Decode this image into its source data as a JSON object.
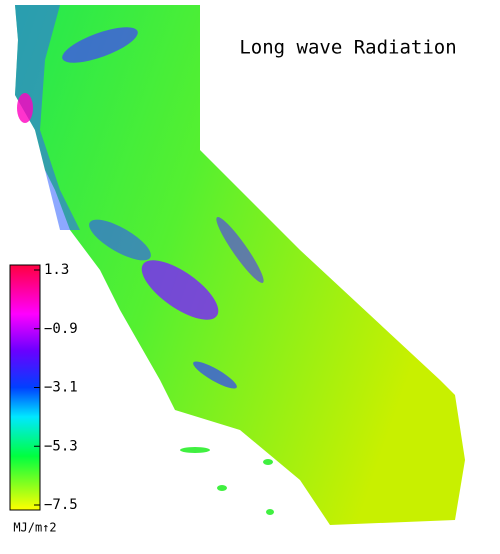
{
  "title": "Long wave Radiation",
  "colorbar": {
    "lim": [
      -7.5,
      1.3
    ],
    "ticks": [
      {
        "value": 1.3,
        "label": "1.3"
      },
      {
        "value": -0.9,
        "label": "−0.9"
      },
      {
        "value": -3.1,
        "label": "−3.1"
      },
      {
        "value": -5.3,
        "label": "−5.3"
      },
      {
        "value": -7.5,
        "label": "−7.5"
      }
    ],
    "unit": "MJ/m↑2"
  }
}
